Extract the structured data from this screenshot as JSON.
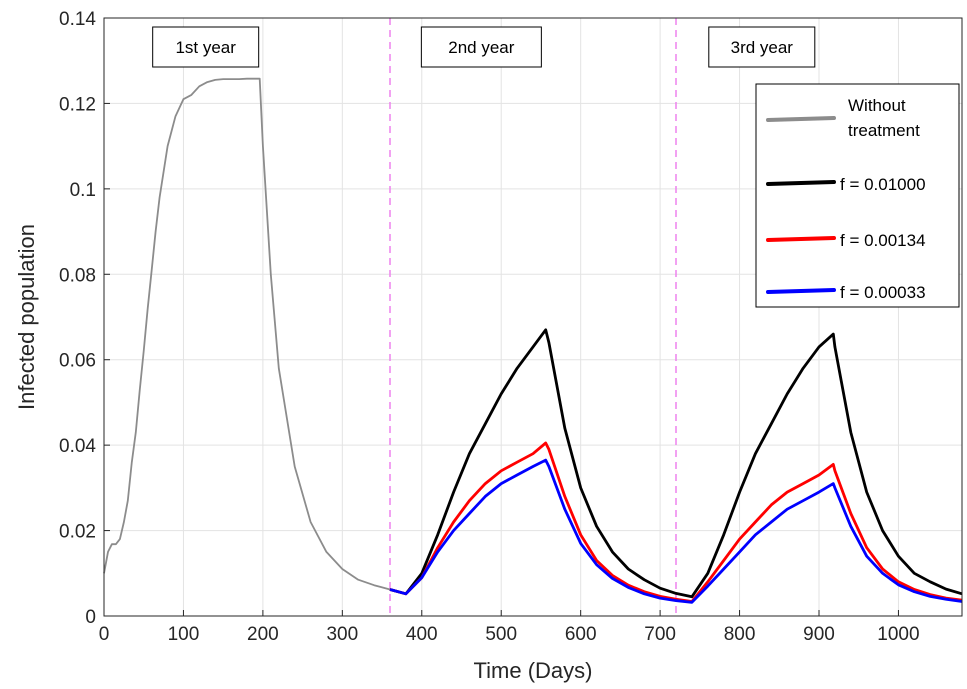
{
  "chart_data": {
    "type": "line",
    "title": "",
    "xlabel": "Time (Days)",
    "ylabel": "Infected population",
    "xlim": [
      0,
      1080
    ],
    "ylim": [
      0,
      0.14
    ],
    "xticks": [
      0,
      100,
      200,
      300,
      400,
      500,
      600,
      700,
      800,
      900,
      1000
    ],
    "xtick_labels": [
      "0",
      "100",
      "200",
      "300",
      "400",
      "500",
      "600",
      "700",
      "800",
      "900",
      "1000"
    ],
    "yticks": [
      0,
      0.02,
      0.04,
      0.06,
      0.08,
      0.1,
      0.12,
      0.14
    ],
    "ytick_labels": [
      "0",
      "0.02",
      "0.04",
      "0.06",
      "0.08",
      "0.1",
      "0.12",
      "0.14"
    ],
    "grid": true,
    "legend_position": "top-right",
    "vlines": [
      {
        "x": 360,
        "color": "#ee82ee",
        "style": "dashed"
      },
      {
        "x": 720,
        "color": "#ee82ee",
        "style": "dashed"
      }
    ],
    "annotations": [
      {
        "text": "1st year",
        "x": 128
      },
      {
        "text": "2nd year",
        "x": 475
      },
      {
        "text": "3rd year",
        "x": 828
      }
    ],
    "series": [
      {
        "name": "Without\ntreatment",
        "color": "#8c8c8c",
        "x": [
          0,
          5,
          10,
          15,
          20,
          25,
          30,
          35,
          40,
          45,
          50,
          55,
          60,
          65,
          70,
          80,
          90,
          100,
          110,
          120,
          130,
          140,
          150,
          160,
          170,
          180,
          190,
          196,
          200,
          210,
          220,
          240,
          260,
          280,
          300,
          320,
          340,
          360,
          370,
          380
        ],
        "y": [
          0.01,
          0.015,
          0.0168,
          0.0168,
          0.018,
          0.022,
          0.027,
          0.036,
          0.043,
          0.053,
          0.062,
          0.072,
          0.081,
          0.09,
          0.098,
          0.11,
          0.117,
          0.121,
          0.122,
          0.124,
          0.125,
          0.1255,
          0.1257,
          0.1257,
          0.1257,
          0.1258,
          0.1258,
          0.1258,
          0.11,
          0.08,
          0.058,
          0.035,
          0.022,
          0.015,
          0.011,
          0.0085,
          0.0072,
          0.0062,
          0.0058,
          0.0052
        ]
      },
      {
        "name": "f = 0.01000",
        "color": "#000000",
        "x": [
          360,
          380,
          400,
          420,
          440,
          460,
          480,
          500,
          520,
          540,
          556,
          560,
          580,
          600,
          620,
          640,
          660,
          680,
          700,
          720,
          740,
          760,
          780,
          800,
          820,
          840,
          860,
          880,
          900,
          918,
          920,
          940,
          960,
          980,
          1000,
          1020,
          1040,
          1060,
          1080
        ],
        "y": [
          0.0062,
          0.0052,
          0.01,
          0.019,
          0.029,
          0.038,
          0.045,
          0.052,
          0.058,
          0.063,
          0.067,
          0.064,
          0.044,
          0.03,
          0.021,
          0.015,
          0.011,
          0.0085,
          0.0065,
          0.0053,
          0.0045,
          0.01,
          0.019,
          0.029,
          0.038,
          0.045,
          0.052,
          0.058,
          0.063,
          0.066,
          0.063,
          0.043,
          0.029,
          0.02,
          0.014,
          0.01,
          0.008,
          0.0063,
          0.0052
        ]
      },
      {
        "name": "f = 0.00134",
        "color": "#ff0000",
        "x": [
          360,
          380,
          400,
          420,
          440,
          460,
          480,
          500,
          520,
          540,
          556,
          560,
          580,
          600,
          620,
          640,
          660,
          680,
          700,
          720,
          740,
          760,
          780,
          800,
          820,
          840,
          860,
          880,
          900,
          918,
          920,
          940,
          960,
          980,
          1000,
          1020,
          1040,
          1060,
          1080
        ],
        "y": [
          0.0062,
          0.0052,
          0.009,
          0.016,
          0.022,
          0.027,
          0.031,
          0.034,
          0.036,
          0.038,
          0.0405,
          0.039,
          0.028,
          0.019,
          0.013,
          0.0095,
          0.0072,
          0.0057,
          0.0046,
          0.0039,
          0.0034,
          0.008,
          0.013,
          0.018,
          0.022,
          0.026,
          0.029,
          0.031,
          0.033,
          0.0355,
          0.034,
          0.024,
          0.016,
          0.011,
          0.008,
          0.0062,
          0.005,
          0.0042,
          0.0037
        ]
      },
      {
        "name": "f = 0.00033",
        "color": "#0000ff",
        "x": [
          360,
          380,
          400,
          420,
          440,
          460,
          480,
          500,
          520,
          540,
          556,
          560,
          580,
          600,
          620,
          640,
          660,
          680,
          700,
          720,
          740,
          760,
          780,
          800,
          820,
          840,
          860,
          880,
          900,
          918,
          920,
          940,
          960,
          980,
          1000,
          1020,
          1040,
          1060,
          1080
        ],
        "y": [
          0.0062,
          0.0052,
          0.009,
          0.015,
          0.02,
          0.024,
          0.028,
          0.031,
          0.033,
          0.035,
          0.0365,
          0.035,
          0.025,
          0.017,
          0.012,
          0.0088,
          0.0067,
          0.0052,
          0.0042,
          0.0036,
          0.0032,
          0.007,
          0.011,
          0.015,
          0.019,
          0.022,
          0.025,
          0.027,
          0.029,
          0.031,
          0.03,
          0.021,
          0.014,
          0.01,
          0.0073,
          0.0057,
          0.0046,
          0.0039,
          0.0034
        ]
      }
    ]
  }
}
